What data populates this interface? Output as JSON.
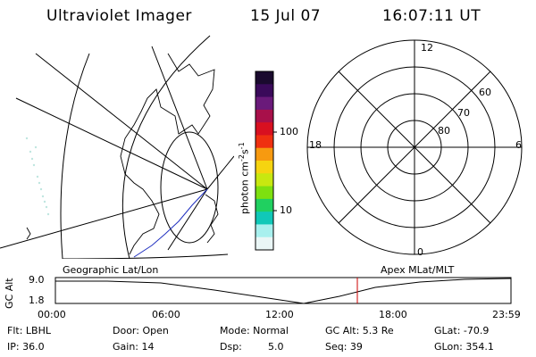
{
  "header": {
    "title": "Ultraviolet Imager",
    "date": "15 Jul 07",
    "time": "16:07:11 UT"
  },
  "colorbar": {
    "label_main": "photon cm",
    "label_exp1": "-2",
    "label_mid": "s",
    "label_exp2": "-1",
    "ticks": [
      "100",
      "10"
    ],
    "colors": [
      "#1a0a2e",
      "#3a0a5a",
      "#6a1a7a",
      "#a8104a",
      "#d81020",
      "#ef3010",
      "#f79a10",
      "#f6d410",
      "#c8e810",
      "#7ee010",
      "#20d060",
      "#10c8b8",
      "#a8f0ee",
      "#eaf6f6"
    ]
  },
  "polar": {
    "mlt_labels": [
      "12",
      "18",
      "6",
      "0"
    ],
    "lat_labels": [
      "60",
      "70",
      "80"
    ]
  },
  "timeline": {
    "left_title": "Geographic Lat/Lon",
    "right_title": "Apex MLat/MLT",
    "ylabel": "GC Alt",
    "ytick_top": "9.0",
    "ytick_bottom": "1.8",
    "xticks": [
      "00:00",
      "06:00",
      "12:00",
      "18:00",
      "23:59"
    ],
    "marker_time": "16:07:11",
    "marker_color": "#cc0000"
  },
  "info": {
    "flt": "Flt: LBHL",
    "ip": "IP: 36.0",
    "door": "Door: Open",
    "gain": "Gain: 14",
    "mode": "Mode: Normal",
    "dsp_label": "Dsp:",
    "dsp_value": "5.0",
    "gc_alt": "GC Alt: 5.3 Re",
    "seq": "Seq: 39",
    "glat": "GLat: -70.9",
    "glon": "GLon: 354.1"
  }
}
